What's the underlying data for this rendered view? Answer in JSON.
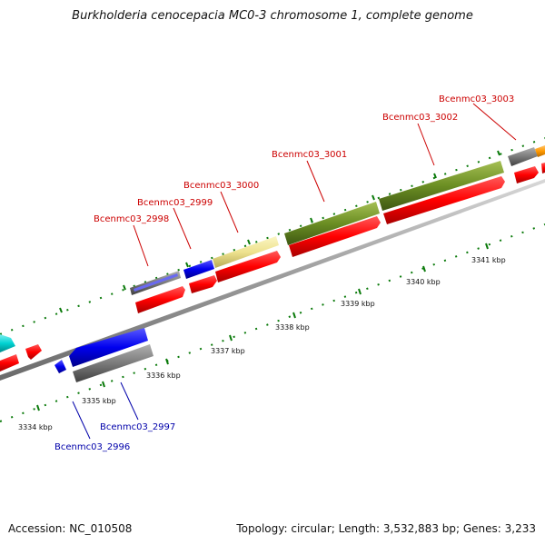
{
  "title": "Burkholderia cenocepacia MC0-3 chromosome 1, complete genome",
  "footer": {
    "accession": "Accession: NC_010508",
    "summary": "Topology: circular; Length: 3,532,883 bp; Genes: 3,233"
  },
  "colors": {
    "label_forward": "#cc0000",
    "label_reverse": "#0000aa",
    "tick": "#0a7a0a",
    "backbone": "#888888"
  },
  "scale_labels": [
    "3334 kbp",
    "3335 kbp",
    "3336 kbp",
    "3337 kbp",
    "3338 kbp",
    "3339 kbp",
    "3340 kbp",
    "3341 kbp"
  ],
  "gene_labels": {
    "g2996": "Bcenmc03_2996",
    "g2997": "Bcenmc03_2997",
    "g2998": "Bcenmc03_2998",
    "g2999": "Bcenmc03_2999",
    "g3000": "Bcenmc03_3000",
    "g3001": "Bcenmc03_3001",
    "g3002": "Bcenmc03_3002",
    "g3003": "Bcenmc03_3003"
  }
}
